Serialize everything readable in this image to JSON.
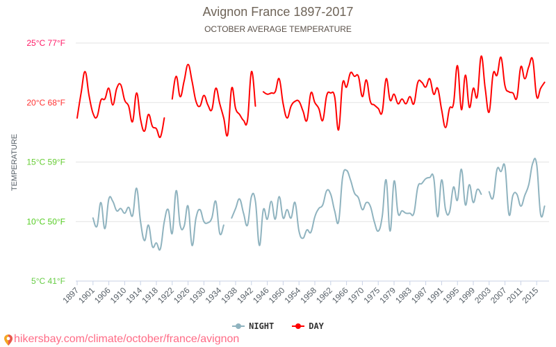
{
  "chart_data": {
    "type": "line",
    "title": "Avignon France 1897-2017",
    "subtitle": "OCTOBER AVERAGE TEMPERATURE",
    "ylabel": "TEMPERATURE",
    "xlabel": "",
    "ylim": [
      5,
      25
    ],
    "grid": true,
    "legend_position": "bottom",
    "y_ticks": [
      {
        "value": 25,
        "label": "25°C 77°F",
        "color": "#ff1a66"
      },
      {
        "value": 20,
        "label": "20°C 68°F",
        "color": "#ff3333"
      },
      {
        "value": 15,
        "label": "15°C 59°F",
        "color": "#66cc33"
      },
      {
        "value": 10,
        "label": "10°C 50°F",
        "color": "#55cc22"
      },
      {
        "value": 5,
        "label": "5°C 41°F",
        "color": "#66cc44"
      }
    ],
    "categories": [
      1897,
      1898,
      1899,
      1900,
      1901,
      1903,
      1904,
      1905,
      1906,
      1907,
      1908,
      1909,
      1910,
      1911,
      1912,
      1913,
      1914,
      1915,
      1916,
      1917,
      1918,
      1919,
      1920,
      1921,
      1922,
      1923,
      1924,
      1925,
      1926,
      1927,
      1928,
      1929,
      1930,
      1931,
      1932,
      1933,
      1934,
      1935,
      1936,
      1937,
      1938,
      1939,
      1940,
      1941,
      1942,
      1943,
      1944,
      1945,
      1946,
      1947,
      1948,
      1949,
      1950,
      1951,
      1952,
      1953,
      1954,
      1955,
      1956,
      1957,
      1958,
      1959,
      1960,
      1961,
      1962,
      1963,
      1964,
      1965,
      1966,
      1967,
      1968,
      1969,
      1970,
      1972,
      1973,
      1974,
      1975,
      1976,
      1977,
      1978,
      1979,
      1980,
      1981,
      1982,
      1983,
      1984,
      1985,
      1986,
      1987,
      1988,
      1989,
      1990,
      1991,
      1992,
      1993,
      1994,
      1995,
      1996,
      1997,
      1998,
      1999,
      2000,
      2001,
      2002,
      2003,
      2004,
      2005,
      2006,
      2007,
      2008,
      2009,
      2010,
      2011,
      2012,
      2013,
      2014,
      2015,
      2016,
      2017
    ],
    "series": [
      {
        "name": "NIGHT",
        "color": "#8fb3bf",
        "values": [
          null,
          null,
          null,
          null,
          10.3,
          9.6,
          11.6,
          9.4,
          11.9,
          11.7,
          10.9,
          11.1,
          10.7,
          11.2,
          10.5,
          12.8,
          10.0,
          8.4,
          9.7,
          7.9,
          8.2,
          7.7,
          10.0,
          11.0,
          9.0,
          12.6,
          9.7,
          9.6,
          11.3,
          8.0,
          10.3,
          11.0,
          10.0,
          9.9,
          10.3,
          11.7,
          9.0,
          9.7,
          null,
          10.3,
          11.1,
          11.9,
          10.7,
          9.7,
          12.1,
          11.7,
          8.0,
          11.0,
          10.2,
          11.7,
          10.2,
          12.1,
          10.3,
          11.0,
          10.3,
          11.6,
          9.2,
          8.6,
          9.3,
          9.1,
          10.4,
          11.1,
          11.4,
          12.6,
          12.3,
          10.9,
          10.0,
          13.7,
          14.3,
          13.5,
          12.4,
          12.0,
          11.0,
          11.6,
          11.3,
          10.0,
          9.2,
          10.4,
          13.5,
          9.2,
          13.4,
          10.7,
          10.9,
          10.7,
          10.7,
          10.7,
          12.9,
          13.2,
          13.6,
          13.7,
          13.7,
          10.4,
          13.5,
          11.0,
          10.8,
          12.9,
          11.8,
          14.4,
          11.4,
          13.1,
          11.6,
          12.7,
          12.3,
          null,
          12.5,
          12.0,
          14.4,
          14.2,
          14.6,
          10.6,
          12.2,
          12.3,
          11.3,
          12.2,
          13.1,
          14.9,
          14.8,
          10.6,
          11.3
        ]
      },
      {
        "name": "DAY",
        "color": "#ff0000",
        "values": [
          18.7,
          20.8,
          22.6,
          20.6,
          19.1,
          18.8,
          20.2,
          20.3,
          21.2,
          19.8,
          21.2,
          21.5,
          20.2,
          19.7,
          18.4,
          20.8,
          18.6,
          17.6,
          19.0,
          18.0,
          17.8,
          17.1,
          18.7,
          null,
          20.3,
          22.2,
          20.5,
          21.8,
          23.2,
          21.8,
          20.1,
          19.7,
          20.6,
          19.8,
          19.4,
          21.2,
          19.9,
          18.7,
          17.3,
          21.2,
          19.5,
          19.0,
          18.5,
          18.5,
          22.6,
          19.7,
          null,
          20.9,
          20.7,
          20.8,
          20.9,
          22.0,
          19.9,
          18.7,
          19.7,
          20.1,
          20.1,
          19.3,
          18.5,
          20.8,
          20.0,
          19.5,
          18.5,
          20.6,
          20.8,
          20.5,
          17.7,
          21.6,
          21.3,
          22.5,
          22.2,
          22.2,
          20.5,
          21.9,
          20.1,
          19.8,
          19.5,
          19.2,
          22.0,
          20.2,
          20.7,
          19.9,
          20.3,
          19.9,
          20.5,
          19.9,
          21.7,
          21.7,
          21.3,
          22.0,
          20.7,
          21.2,
          19.4,
          17.9,
          19.5,
          19.9,
          23.1,
          19.4,
          22.3,
          19.6,
          21.2,
          20.5,
          23.9,
          21.2,
          19.2,
          22.4,
          22.3,
          23.8,
          21.4,
          20.9,
          20.8,
          20.4,
          23.0,
          22.0,
          23.0,
          23.6,
          20.5,
          21.2,
          21.7
        ]
      }
    ]
  },
  "legend": {
    "night": "NIGHT",
    "day": "DAY"
  },
  "footer": {
    "url": "hikersbay.com/climate/october/france/avignon",
    "icon": "map-pin-icon"
  }
}
